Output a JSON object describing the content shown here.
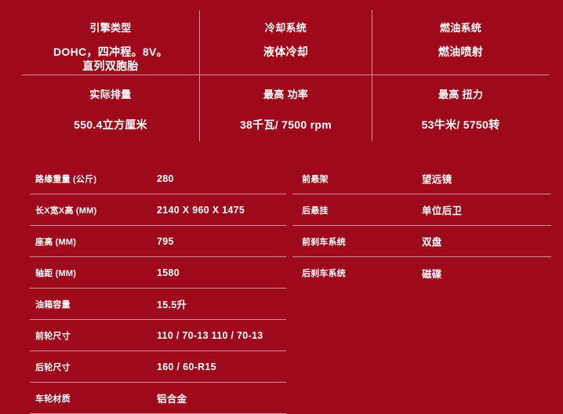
{
  "theme": {
    "background": "#9e0a1c",
    "text": "#ffffff",
    "divider_line": "rgba(255,255,255,0.55)"
  },
  "top_grid": {
    "cells": [
      {
        "header": "引擎类型",
        "line1": "DOHC，四冲程。8V。",
        "line2": "直列双胞胎"
      },
      {
        "header": "冷却系统",
        "line1": "液体冷却"
      },
      {
        "header": "燃油系统",
        "line1": "燃油喷射"
      },
      {
        "header": "实际排量",
        "line1": "550.4立方厘米"
      },
      {
        "header": "最高 功率",
        "line1": "38千瓦/ 7500 rpm"
      },
      {
        "header": "最高 扭力",
        "line1": "53牛米/ 5750转"
      }
    ]
  },
  "spec_left": {
    "rows": [
      {
        "label": "路缘重量 (公斤)",
        "value": "280"
      },
      {
        "label": "长X宽X高 (MM)",
        "value": "2140 X 960 X 1475"
      },
      {
        "label": "座高 (MM)",
        "value": "795"
      },
      {
        "label": "轴距 (MM)",
        "value": "1580"
      },
      {
        "label": "油箱容量",
        "value": "15.5升"
      },
      {
        "label": "前轮尺寸",
        "value": "110 / 70-13 110 / 70-13"
      },
      {
        "label": "后轮尺寸",
        "value": "160 / 60-R15"
      },
      {
        "label": "车轮材质",
        "value": "铝合金"
      }
    ]
  },
  "spec_right": {
    "rows": [
      {
        "label": "前悬架",
        "value": "望远镜"
      },
      {
        "label": "后悬挂",
        "value": "单位后卫"
      },
      {
        "label": "前刹车系统",
        "value": "双盘"
      },
      {
        "label": "后刹车系统",
        "value": "磁碟"
      }
    ]
  }
}
